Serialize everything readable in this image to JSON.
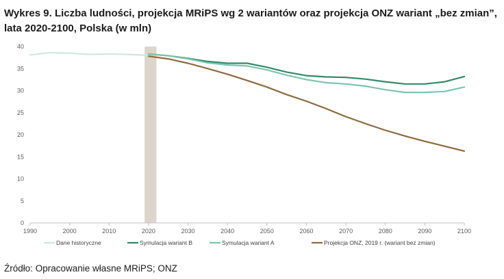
{
  "title_line1": "Wykres 9. Liczba ludności, projekcja MRiPS wg 2 wariantów oraz projekcja ONZ wariant „bez zmian”,",
  "title_line2": "lata 2020-2100, Polska (w mln)",
  "source": "Źródło: Opracowanie własne MRiPS; ONZ",
  "chart_data": {
    "type": "line",
    "title": "Wykres 9. Liczba ludności, projekcja MRiPS wg 2 wariantów oraz projekcja ONZ wariant „bez zmian”, lata 2020-2100, Polska (w mln)",
    "xlabel": "",
    "ylabel": "",
    "xlim": [
      1990,
      2100
    ],
    "ylim": [
      0,
      40
    ],
    "x_ticks": [
      "1990",
      "2000",
      "2010",
      "2020",
      "2030",
      "2040",
      "2050",
      "2060",
      "2070",
      "2080",
      "2090",
      "2100"
    ],
    "y_ticks": [
      "0",
      "5",
      "10",
      "15",
      "20",
      "25",
      "30",
      "35",
      "40"
    ],
    "grid": false,
    "legend_position": "bottom",
    "highlight_band": {
      "from": 2019,
      "to": 2022,
      "color": "#ddd5cc"
    },
    "series": [
      {
        "name": "Dane historyczne",
        "color": "#cfe7e0",
        "x": [
          1990,
          1995,
          2000,
          2005,
          2010,
          2015,
          2020
        ],
        "y": [
          38.1,
          38.6,
          38.5,
          38.2,
          38.3,
          38.2,
          38.0
        ]
      },
      {
        "name": "Symulacja wariant B",
        "color": "#2e8b65",
        "x": [
          2020,
          2025,
          2030,
          2035,
          2040,
          2045,
          2050,
          2055,
          2060,
          2065,
          2070,
          2075,
          2080,
          2085,
          2090,
          2095,
          2100
        ],
        "y": [
          38.3,
          37.9,
          37.3,
          36.6,
          36.2,
          36.2,
          35.3,
          34.2,
          33.4,
          33.1,
          33.0,
          32.6,
          32.0,
          31.5,
          31.5,
          32.0,
          33.2
        ]
      },
      {
        "name": "Symulacja wariant A",
        "color": "#7cc4b0",
        "x": [
          2020,
          2025,
          2030,
          2035,
          2040,
          2045,
          2050,
          2055,
          2060,
          2065,
          2070,
          2075,
          2080,
          2085,
          2090,
          2095,
          2100
        ],
        "y": [
          38.3,
          37.9,
          37.2,
          36.3,
          35.8,
          35.6,
          34.7,
          33.5,
          32.5,
          31.8,
          31.5,
          31.0,
          30.2,
          29.6,
          29.6,
          29.8,
          30.8
        ]
      },
      {
        "name": "Projekcja ONZ, 2019 r. (wariant bez zmian)",
        "color": "#8c6a3a",
        "x": [
          2020,
          2025,
          2030,
          2035,
          2040,
          2045,
          2050,
          2055,
          2060,
          2065,
          2070,
          2075,
          2080,
          2085,
          2090,
          2095,
          2100
        ],
        "y": [
          37.8,
          37.2,
          36.2,
          35.0,
          33.7,
          32.3,
          30.8,
          29.1,
          27.6,
          25.9,
          24.1,
          22.5,
          21.0,
          19.7,
          18.5,
          17.4,
          16.3
        ]
      }
    ]
  }
}
